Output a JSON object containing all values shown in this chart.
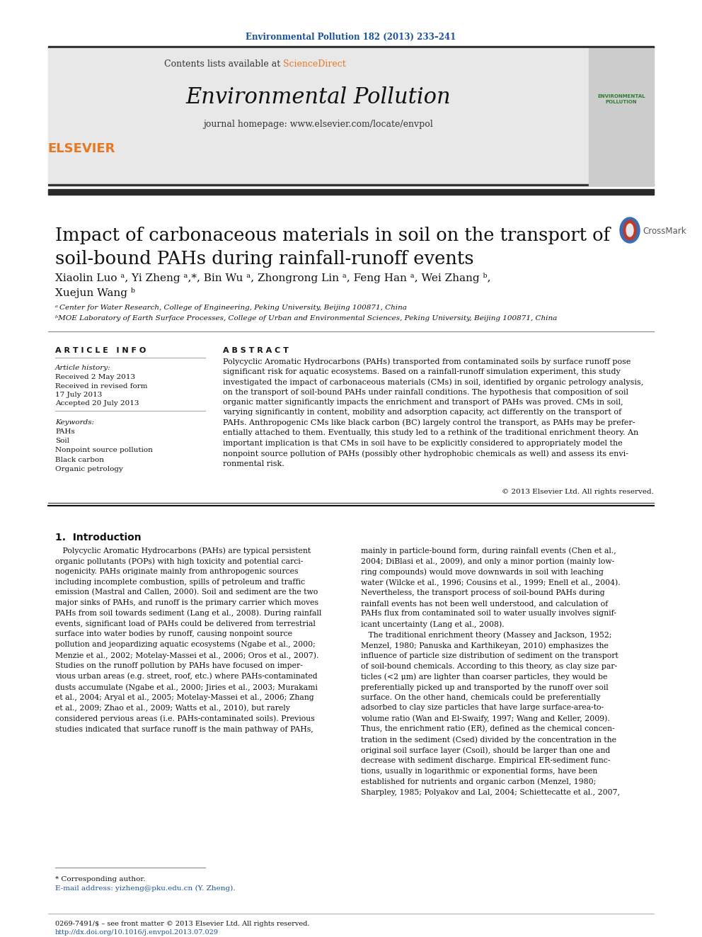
{
  "journal_ref": "Environmental Pollution 182 (2013) 233–241",
  "journal_ref_color": "#1a5299",
  "contents_text": "Contents lists available at ",
  "sciencedirect_text": "ScienceDirect",
  "sciencedirect_color": "#e87722",
  "journal_name": "Environmental Pollution",
  "journal_homepage": "journal homepage: www.elsevier.com/locate/envpol",
  "elsevier_color": "#e87722",
  "thick_bar_color": "#2b2b2b",
  "header_bg_color": "#e8e8e8",
  "title": "Impact of carbonaceous materials in soil on the transport of\nsoil-bound PAHs during rainfall-runoff events",
  "authors": "Xiaolin Luo ᵃ, Yi Zheng ᵃ,*, Bin Wu ᵃ, Zhongrong Lin ᵃ, Feng Han ᵃ, Wei Zhang ᵇ,\nXuejun Wang ᵇ",
  "affiliation_a": "ᵃ Center for Water Research, College of Engineering, Peking University, Beijing 100871, China",
  "affiliation_b": "ᵇMOE Laboratory of Earth Surface Processes, College of Urban and Environmental Sciences, Peking University, Beijing 100871, China",
  "article_info_title": "A R T I C L E   I N F O",
  "article_history_label": "Article history:",
  "article_history": "Received 2 May 2013\nReceived in revised form\n17 July 2013\nAccepted 20 July 2013",
  "keywords_label": "Keywords:",
  "keywords": "PAHs\nSoil\nNonpoint source pollution\nBlack carbon\nOrganic petrology",
  "abstract_title": "A B S T R A C T",
  "abstract_text": "Polycyclic Aromatic Hydrocarbons (PAHs) transported from contaminated soils by surface runoff pose\nsignificant risk for aquatic ecosystems. Based on a rainfall-runoff simulation experiment, this study\ninvestigated the impact of carbonaceous materials (CMs) in soil, identified by organic petrology analysis,\non the transport of soil-bound PAHs under rainfall conditions. The hypothesis that composition of soil\norganic matter significantly impacts the enrichment and transport of PAHs was proved. CMs in soil,\nvarying significantly in content, mobility and adsorption capacity, act differently on the transport of\nPAHs. Anthropogenic CMs like black carbon (BC) largely control the transport, as PAHs may be prefer-\nentially attached to them. Eventually, this study led to a rethink of the traditional enrichment theory. An\nimportant implication is that CMs in soil have to be explicitly considered to appropriately model the\nnonpoint source pollution of PAHs (possibly other hydrophobic chemicals as well) and assess its envi-\nronmental risk.",
  "copyright": "© 2013 Elsevier Ltd. All rights reserved.",
  "section1_title": "1.  Introduction",
  "intro_col1": "   Polycyclic Aromatic Hydrocarbons (PAHs) are typical persistent\norganic pollutants (POPs) with high toxicity and potential carci-\nnogenicity. PAHs originate mainly from anthropogenic sources\nincluding incomplete combustion, spills of petroleum and traffic\nemission (Mastral and Callen, 2000). Soil and sediment are the two\nmajor sinks of PAHs, and runoff is the primary carrier which moves\nPAHs from soil towards sediment (Lang et al., 2008). During rainfall\nevents, significant load of PAHs could be delivered from terrestrial\nsurface into water bodies by runoff, causing nonpoint source\npollution and jeopardizing aquatic ecosystems (Ngabe et al., 2000;\nMenzie et al., 2002; Motelay-Massei et al., 2006; Oros et al., 2007).\nStudies on the runoff pollution by PAHs have focused on imper-\nvious urban areas (e.g. street, roof, etc.) where PAHs-contaminated\ndusts accumulate (Ngabe et al., 2000; Jiries et al., 2003; Murakami\net al., 2004; Aryal et al., 2005; Motelay-Massei et al., 2006; Zhang\net al., 2009; Zhao et al., 2009; Watts et al., 2010), but rarely\nconsidered pervious areas (i.e. PAHs-contaminated soils). Previous\nstudies indicated that surface runoff is the main pathway of PAHs,",
  "intro_col2": "mainly in particle-bound form, during rainfall events (Chen et al.,\n2004; DiBlasi et al., 2009), and only a minor portion (mainly low-\nring compounds) would move downwards in soil with leaching\nwater (Wilcke et al., 1996; Cousins et al., 1999; Enell et al., 2004).\nNevertheless, the transport process of soil-bound PAHs during\nrainfall events has not been well understood, and calculation of\nPAHs flux from contaminated soil to water usually involves signif-\nicant uncertainty (Lang et al., 2008).\n   The traditional enrichment theory (Massey and Jackson, 1952;\nMenzel, 1980; Panuska and Karthikeyan, 2010) emphasizes the\ninfluence of particle size distribution of sediment on the transport\nof soil-bound chemicals. According to this theory, as clay size par-\nticles (<2 μm) are lighter than coarser particles, they would be\npreferentially picked up and transported by the runoff over soil\nsurface. On the other hand, chemicals could be preferentially\nadsorbed to clay size particles that have large surface-area-to-\nvolume ratio (Wan and El-Swaify, 1997; Wang and Keller, 2009).\nThus, the enrichment ratio (ER), defined as the chemical concen-\ntration in the sediment (Csed) divided by the concentration in the\noriginal soil surface layer (Csoil), should be larger than one and\ndecrease with sediment discharge. Empirical ER-sediment func-\ntions, usually in logarithmic or exponential forms, have been\nestablished for nutrients and organic carbon (Menzel, 1980;\nSharpley, 1985; Polyakov and Lal, 2004; Schiettecatte et al., 2007,",
  "footnote_star": "* Corresponding author.",
  "footnote_email": "E-mail address: yizheng@pku.edu.cn (Y. Zheng).",
  "footer_text": "0269-7491/$ – see front matter © 2013 Elsevier Ltd. All rights reserved.\nhttp://dx.doi.org/10.1016/j.envpol.2013.07.029",
  "footer_link_color": "#1a5299",
  "link_color": "#1a5299",
  "background_color": "#ffffff",
  "text_color": "#000000",
  "fig_width": 9.92,
  "fig_height": 13.23
}
